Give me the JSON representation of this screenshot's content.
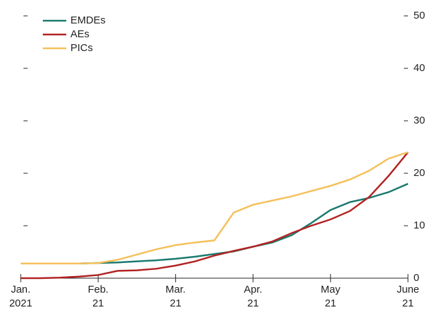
{
  "chart_data": {
    "type": "line",
    "x": [
      0,
      0.25,
      0.5,
      0.75,
      1,
      1.25,
      1.5,
      1.75,
      2,
      2.25,
      2.5,
      2.75,
      3,
      3.25,
      3.5,
      3.75,
      4,
      4.25,
      4.5,
      4.75,
      5
    ],
    "series": [
      {
        "name": "EMDEs",
        "color": "#1a7a6e",
        "values": [
          2.8,
          2.8,
          2.8,
          2.8,
          2.9,
          3.0,
          3.2,
          3.4,
          3.7,
          4.1,
          4.6,
          5.1,
          6.0,
          6.8,
          8.2,
          10.5,
          13.0,
          14.5,
          15.3,
          16.4,
          18.0
        ]
      },
      {
        "name": "AEs",
        "color": "#b22222",
        "values": [
          0,
          0,
          0.1,
          0.3,
          0.6,
          1.4,
          1.5,
          1.8,
          2.4,
          3.2,
          4.3,
          5.2,
          6.0,
          7.0,
          8.6,
          10.0,
          11.2,
          12.8,
          15.5,
          19.5,
          24.0
        ]
      },
      {
        "name": "PICs",
        "color": "#f5c05a",
        "values": [
          2.8,
          2.8,
          2.8,
          2.8,
          2.9,
          3.5,
          4.5,
          5.5,
          6.3,
          6.8,
          7.2,
          12.5,
          14.0,
          14.8,
          15.6,
          16.6,
          17.6,
          18.8,
          20.5,
          22.8,
          24.0
        ]
      }
    ],
    "xlim": [
      0,
      5
    ],
    "xticks": [
      0,
      1,
      2,
      3,
      4,
      5
    ],
    "xtick_labels": [
      [
        "Jan.",
        "2021"
      ],
      [
        "Feb.",
        "21"
      ],
      [
        "Mar.",
        "21"
      ],
      [
        "Apr.",
        "21"
      ],
      [
        "May",
        "21"
      ],
      [
        "June",
        "21"
      ]
    ],
    "ylim": [
      0,
      50
    ],
    "yticks": [
      0,
      10,
      20,
      30,
      40,
      50
    ],
    "y_axis_side": "right",
    "legend": "top-left"
  }
}
